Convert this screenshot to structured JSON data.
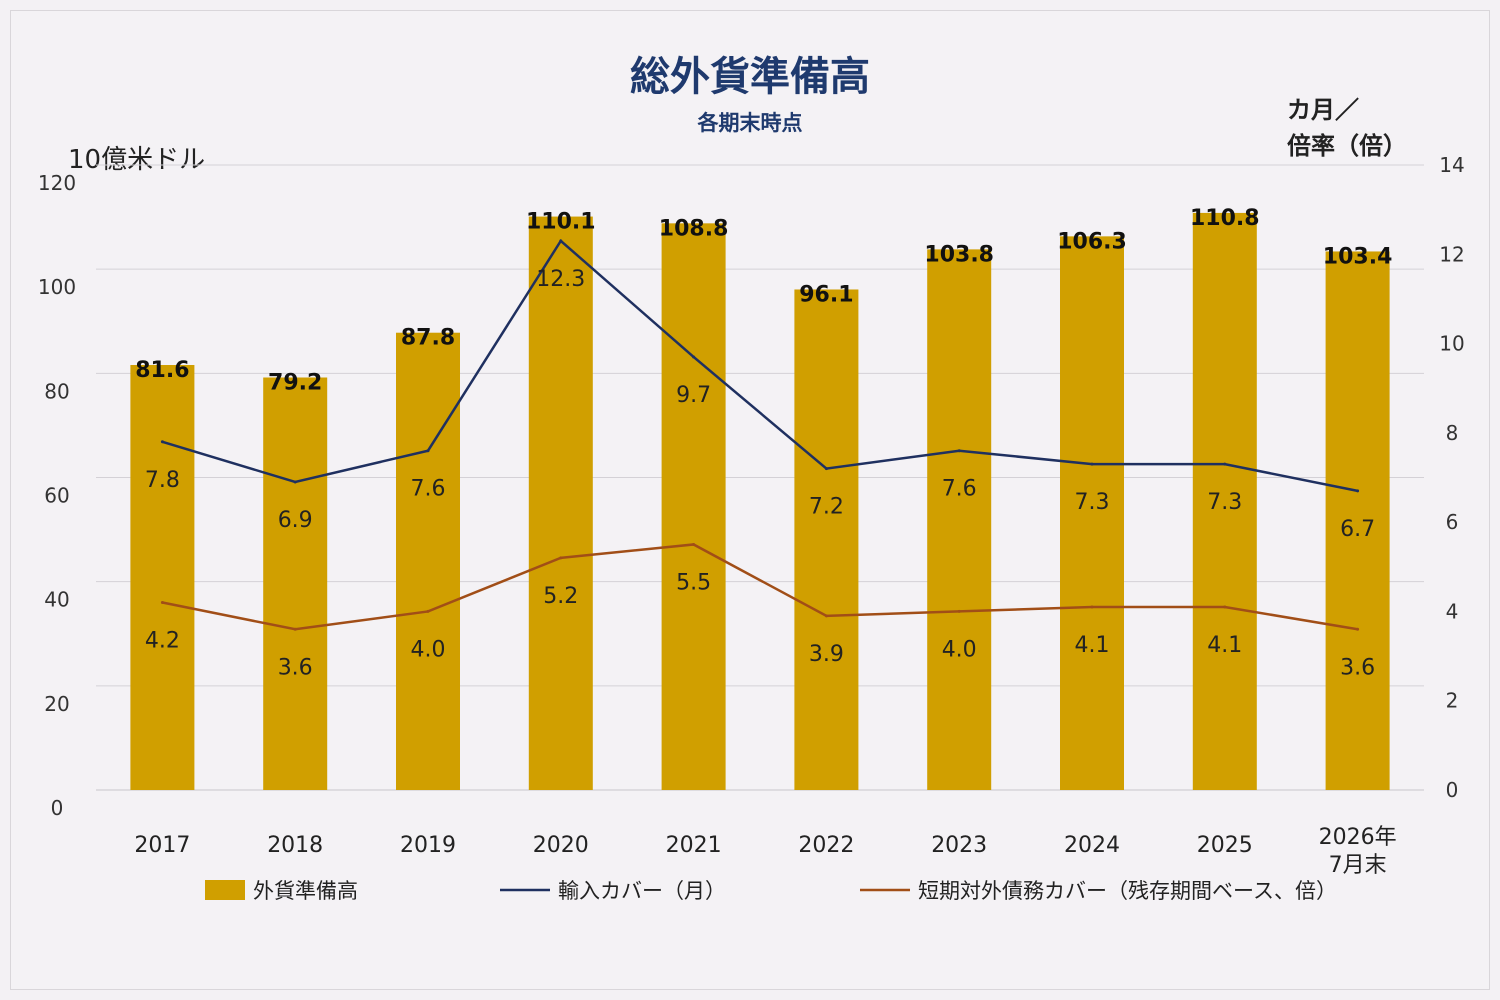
{
  "title": "総外貨準備高",
  "subtitle": "各期末時点",
  "colors": {
    "bar": "#d09f00",
    "import_line": "#1f3060",
    "debt_line": "#a14e17",
    "grid": "#d4d1d6",
    "title": "#1f3a6e"
  },
  "chart_data": {
    "type": "bar",
    "title": "総外貨準備高",
    "subtitle": "各期末時点",
    "categories": [
      "2017",
      "2018",
      "2019",
      "2020",
      "2021",
      "2022",
      "2023",
      "2024",
      "2025",
      "2026年\n7月末"
    ],
    "left_axis": {
      "label": "10億米ドル",
      "ylim": [
        0,
        120
      ],
      "ticks": [
        0,
        20,
        40,
        60,
        80,
        100,
        120
      ]
    },
    "right_axis": {
      "label": [
        "カ月／",
        "倍率（倍）"
      ],
      "ylim": [
        0,
        14
      ],
      "ticks": [
        0,
        2,
        4,
        6,
        8,
        10,
        12,
        14
      ]
    },
    "grid": true,
    "legend_position": "bottom",
    "series": [
      {
        "name": "外貨準備高",
        "type": "bar",
        "axis": "left",
        "values": [
          81.6,
          79.2,
          87.8,
          110.1,
          108.8,
          96.1,
          103.8,
          106.3,
          110.8,
          103.4
        ],
        "labels": [
          "81.6",
          "79.2",
          "87.8",
          "110.1",
          "108.8",
          "96.1",
          "103.8",
          "106.3",
          "110.8",
          "103.4"
        ]
      },
      {
        "name": "輸入カバー（月）",
        "type": "line",
        "axis": "right",
        "values": [
          7.8,
          6.9,
          7.6,
          12.3,
          9.7,
          7.2,
          7.6,
          7.3,
          7.3,
          6.7
        ],
        "labels": [
          "7.8",
          "6.9",
          "7.6",
          "12.3",
          "9.7",
          "7.2",
          "7.6",
          "7.3",
          "7.3",
          "6.7"
        ]
      },
      {
        "name": "短期対外債務カバー（残存期間ベース、倍）",
        "type": "line",
        "axis": "right",
        "values": [
          4.2,
          3.6,
          4.0,
          5.2,
          5.5,
          3.9,
          4.0,
          4.1,
          4.1,
          3.6
        ],
        "labels": [
          "4.2",
          "3.6",
          "4.0",
          "5.2",
          "5.5",
          "3.9",
          "4.0",
          "4.1",
          "4.1",
          "3.6"
        ]
      }
    ]
  }
}
